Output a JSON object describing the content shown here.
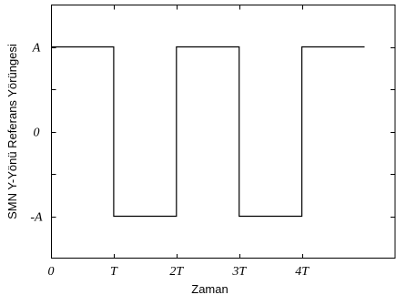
{
  "chart_data": {
    "type": "line",
    "xlabel": "Zaman",
    "ylabel": "SMN Y-Yönü Referans Yörüngesi",
    "x_ticks": [
      {
        "value": 0,
        "label": "0"
      },
      {
        "value": 1,
        "label": "T"
      },
      {
        "value": 2,
        "label": "2T"
      },
      {
        "value": 3,
        "label": "3T"
      },
      {
        "value": 4,
        "label": "4T"
      }
    ],
    "y_ticks": [
      {
        "value": 1,
        "label": "A"
      },
      {
        "value": 0,
        "label": "0"
      },
      {
        "value": -1,
        "label": "-A"
      }
    ],
    "xlim": [
      0,
      5.5
    ],
    "ylim": [
      -1.5,
      1.5
    ],
    "grid": false,
    "series": [
      {
        "x": [
          0,
          1,
          1,
          2,
          2,
          3,
          3,
          4,
          4,
          5
        ],
        "y": [
          1,
          1,
          -1,
          -1,
          1,
          1,
          -1,
          -1,
          1,
          1
        ]
      }
    ]
  }
}
